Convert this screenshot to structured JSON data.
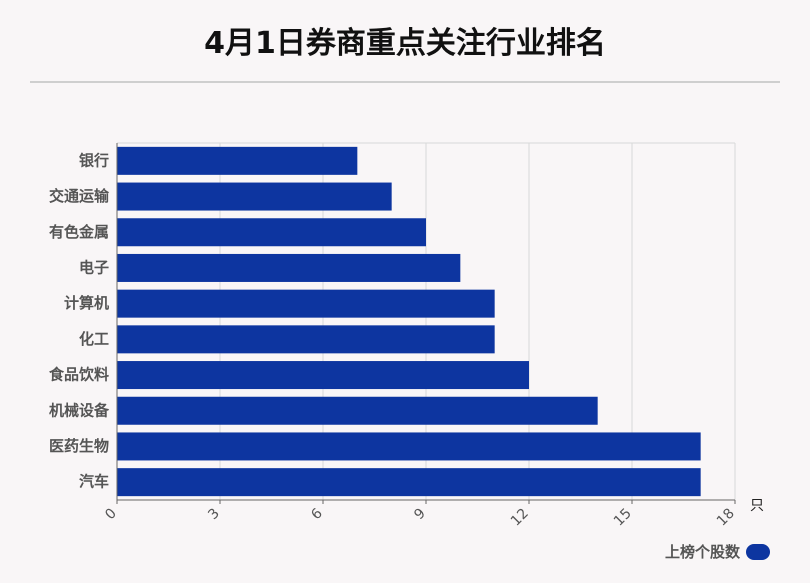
{
  "title": "4月1日券商重点关注行业排名",
  "colors": {
    "bar": "#0d35a0",
    "grid": "#d8d8d8",
    "axis": "#666666",
    "label": "#555555"
  },
  "chart_data": {
    "type": "bar",
    "orientation": "horizontal",
    "title": "4月1日券商重点关注行业排名",
    "categories": [
      "银行",
      "交通运输",
      "有色金属",
      "电子",
      "计算机",
      "化工",
      "食品饮料",
      "机械设备",
      "医药生物",
      "汽车"
    ],
    "series": [
      {
        "name": "上榜个股数",
        "values": [
          7,
          8,
          9,
          10,
          11,
          11,
          12,
          14,
          17,
          17
        ]
      }
    ],
    "xticks": [
      0,
      3,
      6,
      9,
      12,
      15,
      18
    ],
    "xlim": [
      0,
      18
    ],
    "xunit": "只",
    "grid": true,
    "legend_position": "bottom-right"
  }
}
